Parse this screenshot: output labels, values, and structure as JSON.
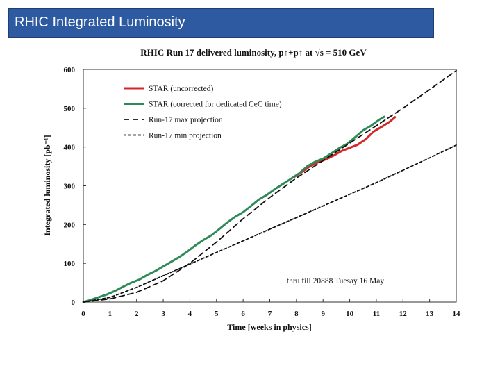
{
  "slide": {
    "title": "RHIC Integrated Luminosity",
    "header_color": "#2d5aa0"
  },
  "chart_data": {
    "type": "line",
    "title": "RHIC Run 17 delivered luminosity,  p↑+p↑ at √s = 510 GeV",
    "xlabel": "Time [weeks in physics]",
    "ylabel": "Integrated luminosity [pb⁻¹]",
    "xlim": [
      0,
      14
    ],
    "ylim": [
      0,
      600
    ],
    "xticks": [
      "0",
      "1",
      "2",
      "3",
      "4",
      "5",
      "6",
      "7",
      "8",
      "9",
      "10",
      "11",
      "12",
      "13",
      "14"
    ],
    "yticks": [
      "0",
      "100",
      "200",
      "300",
      "400",
      "500",
      "600"
    ],
    "grid": false,
    "legend_position": "top-left",
    "annotation": "thru fill  20888 Tuesay 16 May",
    "series": [
      {
        "name": "STAR (uncorrected)",
        "color": "#d62728",
        "style": "solid",
        "x": [
          7.9,
          8.2,
          8.5,
          8.8,
          9.1,
          9.4,
          9.7,
          10.0,
          10.3,
          10.6,
          10.9,
          11.2,
          11.5,
          11.7
        ],
        "y": [
          322,
          335,
          350,
          360,
          368,
          378,
          390,
          398,
          406,
          420,
          440,
          452,
          465,
          477
        ]
      },
      {
        "name": "STAR (corrected for dedicated CeC time)",
        "color": "#2e8b57",
        "style": "solid",
        "x": [
          0,
          0.3,
          0.6,
          0.9,
          1.2,
          1.5,
          1.8,
          2.1,
          2.4,
          2.7,
          3.0,
          3.3,
          3.6,
          3.9,
          4.2,
          4.5,
          4.8,
          5.1,
          5.4,
          5.7,
          6.0,
          6.3,
          6.6,
          6.9,
          7.2,
          7.5,
          7.8,
          8.1,
          8.4,
          8.7,
          9.0,
          9.3,
          9.6,
          9.9,
          10.2,
          10.5,
          10.8,
          11.1,
          11.3
        ],
        "y": [
          0,
          6,
          13,
          20,
          29,
          40,
          50,
          58,
          70,
          80,
          92,
          104,
          116,
          130,
          146,
          160,
          172,
          188,
          205,
          220,
          232,
          248,
          265,
          277,
          292,
          305,
          318,
          332,
          350,
          362,
          370,
          383,
          397,
          408,
          425,
          443,
          455,
          470,
          478
        ]
      },
      {
        "name": "Run-17 max projection",
        "color": "#111111",
        "style": "long-dash",
        "x": [
          0,
          1,
          2,
          3,
          4,
          5,
          6,
          7,
          8,
          9,
          10,
          11,
          12,
          13,
          14
        ],
        "y": [
          0,
          8,
          25,
          55,
          100,
          155,
          215,
          270,
          320,
          365,
          410,
          455,
          500,
          548,
          597
        ]
      },
      {
        "name": "Run-17 min projection",
        "color": "#111111",
        "style": "short-dash",
        "x": [
          0,
          1,
          2,
          3,
          4,
          5,
          6,
          7,
          8,
          9,
          10,
          11,
          12,
          13,
          14
        ],
        "y": [
          0,
          12,
          38,
          68,
          98,
          128,
          158,
          188,
          218,
          248,
          278,
          308,
          340,
          372,
          405
        ]
      }
    ]
  }
}
